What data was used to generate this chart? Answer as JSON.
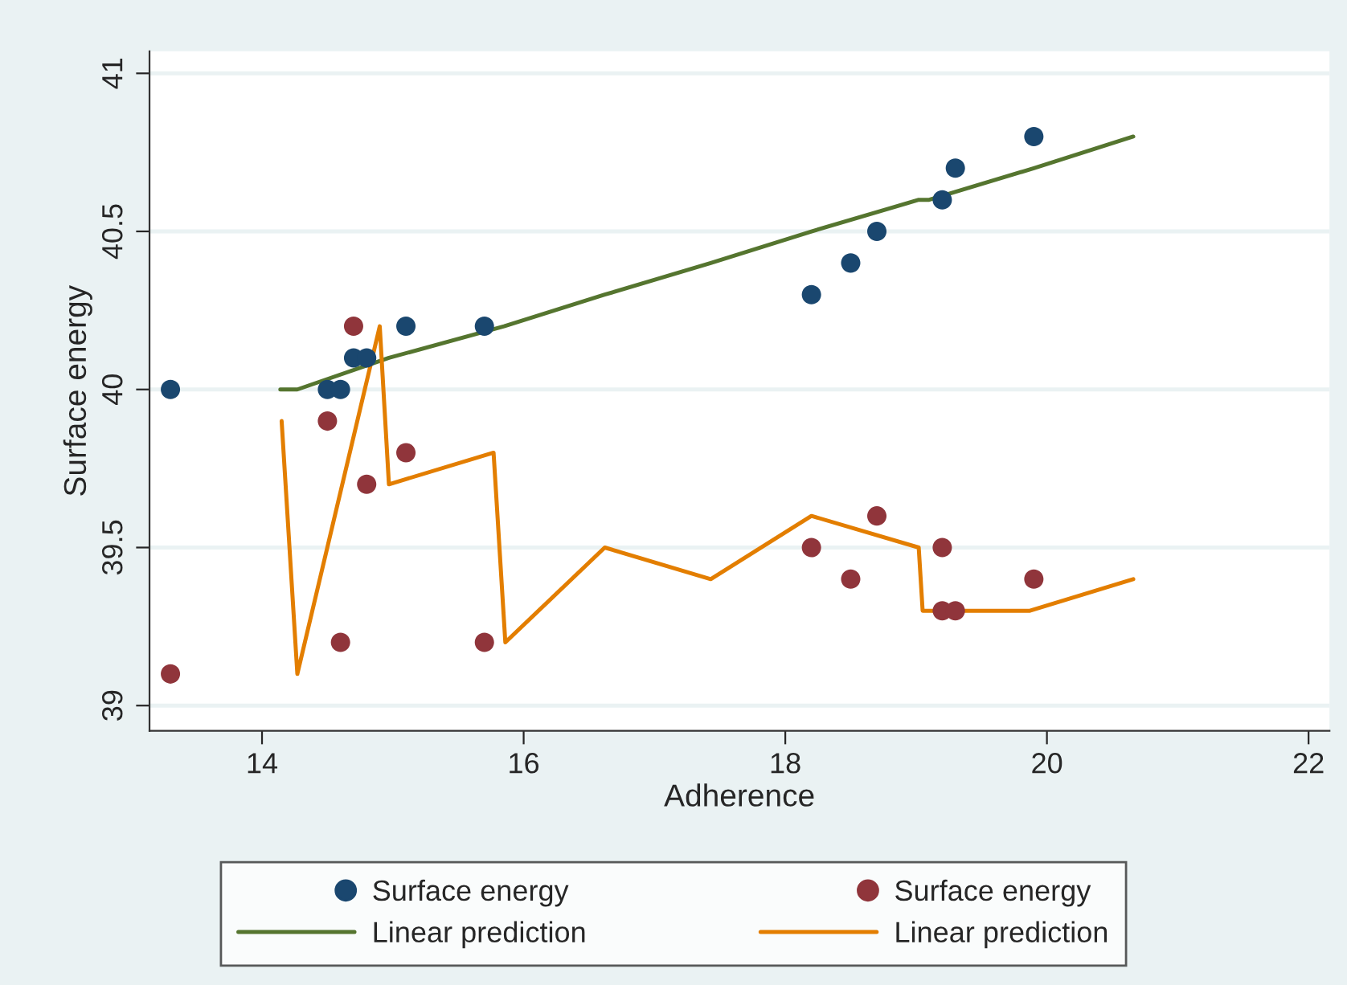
{
  "chart_data": {
    "type": "scatter",
    "xlabel": "Adherence",
    "ylabel": "Surface energy",
    "xlim": [
      13.14,
      22.16
    ],
    "ylim": [
      38.92,
      41.07
    ],
    "xticks": [
      14,
      16,
      18,
      20,
      22
    ],
    "yticks": [
      39,
      39.5,
      40,
      40.5,
      41
    ],
    "grid": "y",
    "legend": "bottom",
    "series": [
      {
        "name": "Surface energy",
        "marker": "circle",
        "color": "#1a476f",
        "x": [
          13.3,
          14.5,
          14.6,
          14.7,
          14.8,
          15.1,
          15.7,
          18.2,
          18.5,
          18.7,
          19.2,
          19.3,
          19.9
        ],
        "values": [
          40,
          40,
          40,
          40.1,
          40.1,
          40.2,
          40.2,
          40.3,
          40.4,
          40.5,
          40.6,
          40.7,
          40.8
        ]
      },
      {
        "name": "Surface energy",
        "marker": "circle",
        "color": "#90353b",
        "x": [
          13.3,
          14.5,
          14.6,
          14.7,
          14.8,
          15.1,
          15.7,
          18.2,
          18.5,
          18.7,
          19.2,
          19.2,
          19.3,
          19.9
        ],
        "values": [
          39.1,
          39.9,
          39.2,
          40.2,
          39.7,
          39.8,
          39.2,
          39.5,
          39.4,
          39.6,
          39.5,
          39.3,
          39.3,
          39.4
        ]
      },
      {
        "name": "Linear prediction",
        "type": "line",
        "color": "#55752f",
        "x": [
          14.14,
          14.27,
          14.97,
          15.85,
          16.62,
          17.43,
          18.2,
          19.02,
          19.1,
          19.9,
          20.66
        ],
        "values": [
          40,
          40,
          40.1,
          40.2,
          40.3,
          40.4,
          40.5,
          40.6,
          40.6,
          40.7,
          40.8
        ]
      },
      {
        "name": "Linear prediction",
        "type": "line",
        "color": "#e37e00",
        "x": [
          14.15,
          14.27,
          14.9,
          14.97,
          15.77,
          15.86,
          16.62,
          17.43,
          18.2,
          19.02,
          19.05,
          19.87,
          20.66
        ],
        "values": [
          39.9,
          39.1,
          40.2,
          39.7,
          39.8,
          39.2,
          39.5,
          39.4,
          39.6,
          39.5,
          39.3,
          39.3,
          39.4
        ]
      }
    ]
  }
}
